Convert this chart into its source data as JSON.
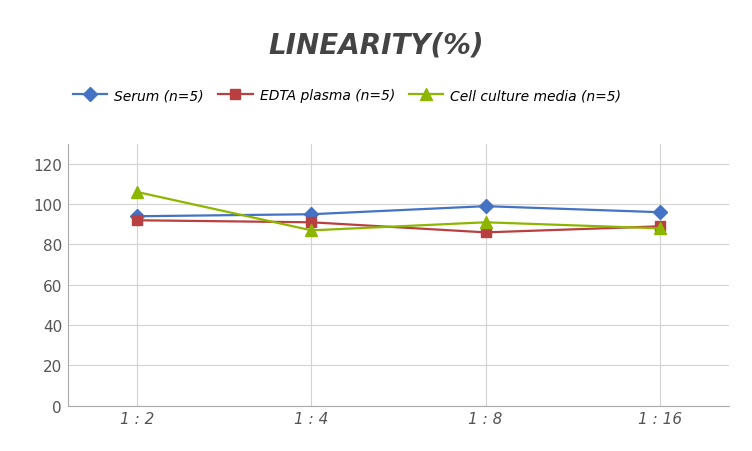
{
  "title": "LINEARITY(%)",
  "x_labels": [
    "1 : 2",
    "1 : 4",
    "1 : 8",
    "1 : 16"
  ],
  "x_positions": [
    0,
    1,
    2,
    3
  ],
  "series": [
    {
      "label": "Serum (n=5)",
      "values": [
        94,
        95,
        99,
        96
      ],
      "color": "#4472C4",
      "marker": "D",
      "markersize": 7,
      "linewidth": 1.6
    },
    {
      "label": "EDTA plasma (n=5)",
      "values": [
        92,
        91,
        86,
        89
      ],
      "color": "#B94040",
      "marker": "s",
      "markersize": 7,
      "linewidth": 1.6
    },
    {
      "label": "Cell culture media (n=5)",
      "values": [
        106,
        87,
        91,
        88
      ],
      "color": "#8DB600",
      "marker": "^",
      "markersize": 8,
      "linewidth": 1.6
    }
  ],
  "ylim": [
    0,
    130
  ],
  "yticks": [
    0,
    20,
    40,
    60,
    80,
    100,
    120
  ],
  "background_color": "#FFFFFF",
  "grid_color": "#D3D3D3",
  "title_fontsize": 20,
  "legend_fontsize": 10,
  "tick_fontsize": 11,
  "tick_color": "#555555"
}
